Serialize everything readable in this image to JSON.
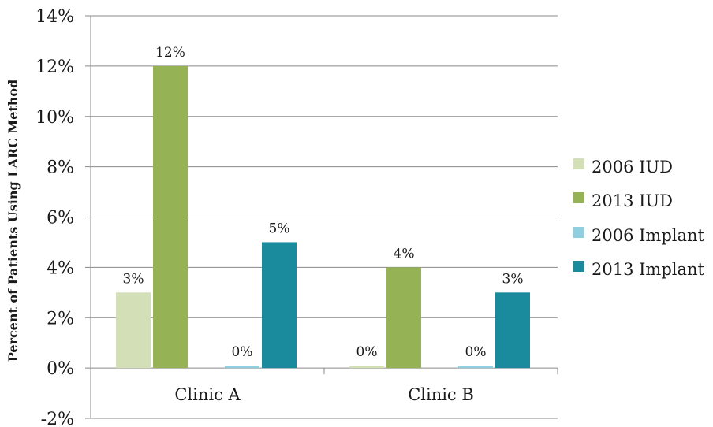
{
  "chart_data": {
    "type": "bar",
    "categories": [
      "Clinic A",
      "Clinic B"
    ],
    "series": [
      {
        "name": "2006 IUD",
        "values": [
          3,
          0
        ],
        "labels": [
          "3%",
          "0%"
        ],
        "color": "#d3dfb7"
      },
      {
        "name": "2013 IUD",
        "values": [
          12,
          4
        ],
        "labels": [
          "12%",
          "4%"
        ],
        "color": "#95b254"
      },
      {
        "name": "2006 Implant",
        "values": [
          0,
          0
        ],
        "labels": [
          "0%",
          "0%"
        ],
        "color": "#8fcfdf"
      },
      {
        "name": "2013 Implant",
        "values": [
          5,
          3
        ],
        "labels": [
          "5%",
          "3%"
        ],
        "color": "#1a8b9d"
      }
    ],
    "ylabel": "Percent of Patients Using LARC Method",
    "ylim": [
      -2,
      14
    ],
    "yticks": [
      -2,
      0,
      2,
      4,
      6,
      8,
      10,
      12,
      14
    ],
    "ytick_labels": [
      "-2%",
      "0%",
      "2%",
      "4%",
      "6%",
      "8%",
      "10%",
      "12%",
      "14%"
    ],
    "grid": true,
    "legend_position": "right"
  }
}
